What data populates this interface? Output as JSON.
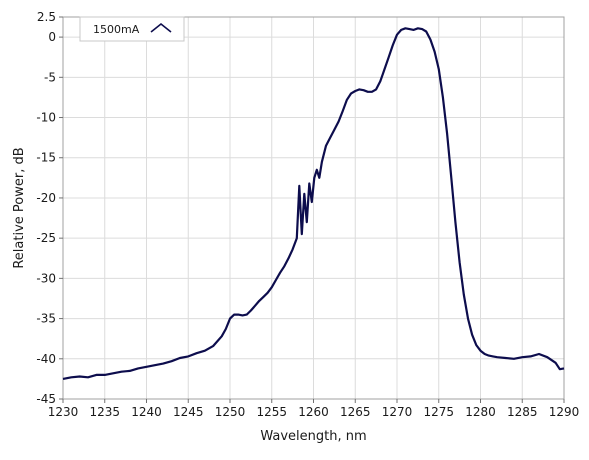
{
  "chart_data": {
    "type": "line",
    "title": "",
    "xlabel": "Wavelength, nm",
    "ylabel": "Relative Power, dB",
    "xlim": [
      1230,
      1290
    ],
    "ylim": [
      -45,
      2.5
    ],
    "x_ticks": [
      1230,
      1235,
      1240,
      1245,
      1250,
      1255,
      1260,
      1265,
      1270,
      1275,
      1280,
      1285,
      1290
    ],
    "y_ticks": [
      2.5,
      0,
      -5,
      -10,
      -15,
      -20,
      -25,
      -30,
      -35,
      -40,
      -45
    ],
    "grid": true,
    "legend_position": "top-left",
    "series": [
      {
        "name": "1500mA",
        "color": "#0d0d4d",
        "x": [
          1230.0,
          1231.0,
          1232.0,
          1233.0,
          1234.0,
          1235.0,
          1236.0,
          1237.0,
          1238.0,
          1239.0,
          1240.0,
          1241.0,
          1242.0,
          1243.0,
          1244.0,
          1245.0,
          1246.0,
          1247.0,
          1248.0,
          1249.0,
          1249.5,
          1250.0,
          1250.5,
          1251.0,
          1251.5,
          1252.0,
          1252.5,
          1253.0,
          1253.5,
          1254.0,
          1254.5,
          1255.0,
          1255.5,
          1256.0,
          1256.5,
          1257.0,
          1257.5,
          1258.0,
          1258.3,
          1258.6,
          1258.9,
          1259.2,
          1259.5,
          1259.8,
          1260.1,
          1260.4,
          1260.7,
          1261.0,
          1261.5,
          1262.0,
          1262.5,
          1263.0,
          1263.5,
          1264.0,
          1264.5,
          1265.0,
          1265.5,
          1266.0,
          1266.5,
          1267.0,
          1267.5,
          1268.0,
          1268.5,
          1269.0,
          1269.5,
          1270.0,
          1270.5,
          1271.0,
          1271.5,
          1272.0,
          1272.5,
          1273.0,
          1273.5,
          1274.0,
          1274.5,
          1275.0,
          1275.5,
          1276.0,
          1276.5,
          1277.0,
          1277.5,
          1278.0,
          1278.5,
          1279.0,
          1279.5,
          1280.0,
          1280.5,
          1281.0,
          1281.5,
          1282.0,
          1283.0,
          1284.0,
          1285.0,
          1286.0,
          1287.0,
          1288.0,
          1289.0,
          1289.5,
          1290.0
        ],
        "values": [
          -42.5,
          -42.3,
          -42.2,
          -42.3,
          -42.0,
          -42.0,
          -41.8,
          -41.6,
          -41.5,
          -41.2,
          -41.0,
          -40.8,
          -40.6,
          -40.3,
          -39.9,
          -39.7,
          -39.3,
          -39.0,
          -38.4,
          -37.2,
          -36.3,
          -35.0,
          -34.5,
          -34.5,
          -34.6,
          -34.5,
          -34.0,
          -33.4,
          -32.8,
          -32.3,
          -31.8,
          -31.1,
          -30.2,
          -29.3,
          -28.5,
          -27.5,
          -26.4,
          -25.0,
          -18.5,
          -24.5,
          -19.5,
          -23.0,
          -18.2,
          -20.5,
          -17.5,
          -16.5,
          -17.5,
          -15.5,
          -13.5,
          -12.5,
          -11.5,
          -10.5,
          -9.2,
          -7.8,
          -7.0,
          -6.7,
          -6.5,
          -6.6,
          -6.8,
          -6.8,
          -6.5,
          -5.5,
          -4.0,
          -2.5,
          -1.0,
          0.3,
          0.9,
          1.1,
          1.0,
          0.9,
          1.1,
          1.0,
          0.7,
          -0.3,
          -1.8,
          -4.0,
          -7.5,
          -12.0,
          -17.5,
          -23.0,
          -28.0,
          -32.0,
          -35.0,
          -37.0,
          -38.3,
          -39.0,
          -39.4,
          -39.6,
          -39.7,
          -39.8,
          -39.9,
          -40.0,
          -39.8,
          -39.7,
          -39.4,
          -39.8,
          -40.5,
          -41.3,
          -41.2
        ]
      }
    ]
  }
}
